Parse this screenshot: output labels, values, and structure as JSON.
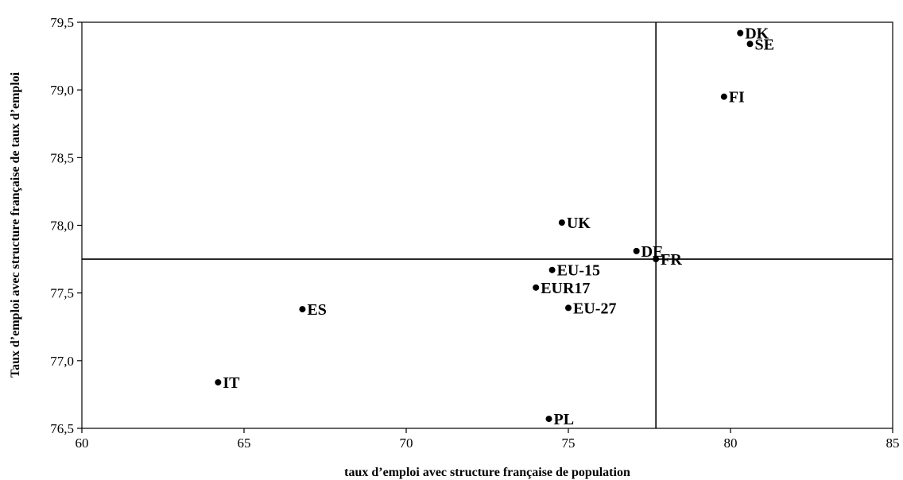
{
  "chart_data": {
    "type": "scatter",
    "title": "",
    "xlabel": "taux d’emploi avec structure française de population",
    "ylabel": "Taux d’emploi avec structure française de taux d’emploi",
    "xlim": [
      60,
      85
    ],
    "ylim": [
      76.5,
      79.5
    ],
    "xticks": [
      "60",
      "65",
      "70",
      "75",
      "80",
      "85"
    ],
    "yticks": [
      "76,5",
      "77,0",
      "77,5",
      "78,0",
      "78,5",
      "79,0",
      "79,5"
    ],
    "grid": false,
    "legend": "none",
    "reference_lines": {
      "x": 77.7,
      "y": 77.75
    },
    "points": [
      {
        "label": "DK",
        "x": 80.3,
        "y": 79.42
      },
      {
        "label": "SE",
        "x": 80.6,
        "y": 79.34
      },
      {
        "label": "FI",
        "x": 79.8,
        "y": 78.95
      },
      {
        "label": "UK",
        "x": 74.8,
        "y": 78.02
      },
      {
        "label": "DE",
        "x": 77.1,
        "y": 77.81
      },
      {
        "label": "FR",
        "x": 77.7,
        "y": 77.75
      },
      {
        "label": "EU-15",
        "x": 74.5,
        "y": 77.67
      },
      {
        "label": "EUR17",
        "x": 74.0,
        "y": 77.54
      },
      {
        "label": "EU-27",
        "x": 75.0,
        "y": 77.39
      },
      {
        "label": "ES",
        "x": 66.8,
        "y": 77.38
      },
      {
        "label": "IT",
        "x": 64.2,
        "y": 76.84
      },
      {
        "label": "PL",
        "x": 74.4,
        "y": 76.57
      }
    ],
    "colors": {
      "marker": "#000000",
      "axes": "#000000"
    }
  }
}
